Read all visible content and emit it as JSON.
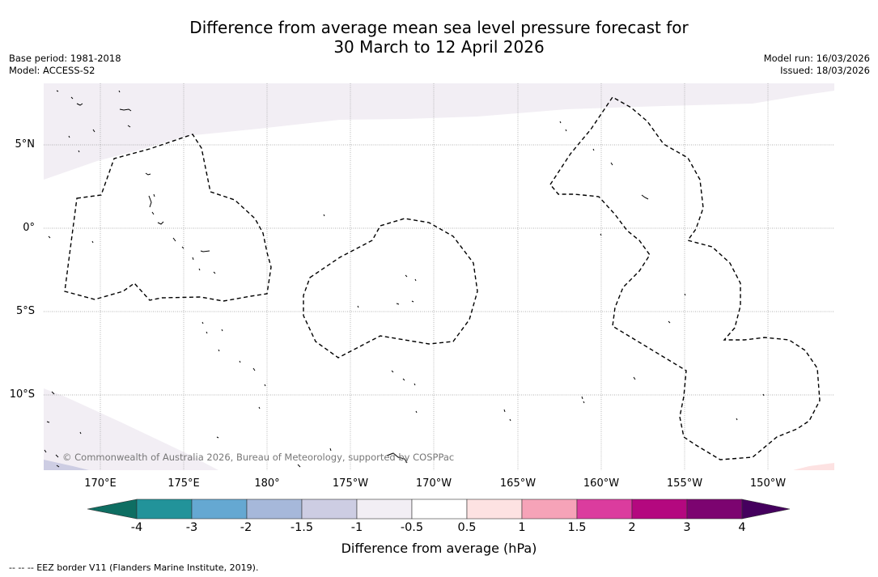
{
  "title": {
    "line1": "Difference from average mean sea level pressure forecast for",
    "line2": "30 March to 12 April 2026"
  },
  "meta": {
    "base_period": "Base period: 1981-2018",
    "model": "Model: ACCESS-S2",
    "model_run": "Model run: 16/03/2026",
    "issued": "Issued: 18/03/2026"
  },
  "map": {
    "lat_labels": [
      "5°N",
      "0°",
      "5°S",
      "10°S"
    ],
    "lon_labels": [
      "170°E",
      "175°E",
      "180°",
      "175°W",
      "170°W",
      "165°W",
      "160°W",
      "155°W",
      "150°W"
    ],
    "copyright": "© Commonwealth of Australia 2026, Bureau of Meteorology, supported by COSPPac"
  },
  "colorbar": {
    "ticks": [
      "-4",
      "-3",
      "-2",
      "-1.5",
      "-1",
      "-0.5",
      "0.5",
      "1",
      "1.5",
      "2",
      "3",
      "4"
    ],
    "colors": {
      "below": "#0e6e62",
      "bins": [
        "#22939a",
        "#65a8d2",
        "#a6b8da",
        "#cdcde3",
        "#f2eef4",
        "#ffffff",
        "#fde2e2",
        "#f6a3b8",
        "#db3c9e",
        "#b4087f",
        "#7c0470"
      ],
      "above": "#45005e"
    },
    "title": "Difference from average (hPa)"
  },
  "legend_note": "--  --  -- EEZ border V11 (Flanders Marine Institute, 2019)."
}
